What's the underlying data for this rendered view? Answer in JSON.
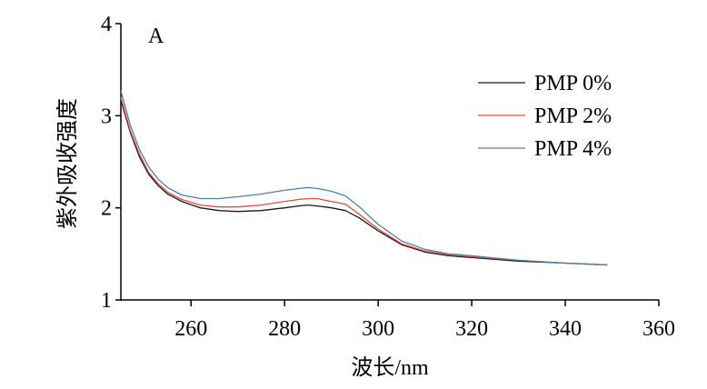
{
  "panel_label": "A",
  "chart_data": {
    "type": "line",
    "xlabel": "波长/nm",
    "ylabel": "紫外吸收强度",
    "xlim": [
      245,
      360
    ],
    "ylim": [
      1,
      4
    ],
    "xticks": [
      260,
      280,
      300,
      320,
      340,
      360
    ],
    "yticks": [
      1,
      2,
      3,
      4
    ],
    "grid": false,
    "legend_position": "top-right",
    "x": [
      245,
      247,
      249,
      251,
      253,
      255,
      258,
      262,
      266,
      270,
      275,
      280,
      283,
      285,
      287,
      290,
      293,
      296,
      300,
      305,
      310,
      315,
      320,
      330,
      340,
      349
    ],
    "series": [
      {
        "name": "PMP 0%",
        "color": "#1a1a1a",
        "values": [
          3.17,
          2.82,
          2.55,
          2.36,
          2.24,
          2.15,
          2.07,
          2.0,
          1.97,
          1.96,
          1.97,
          2.0,
          2.02,
          2.03,
          2.02,
          2.0,
          1.97,
          1.89,
          1.75,
          1.6,
          1.52,
          1.48,
          1.46,
          1.42,
          1.4,
          1.38
        ]
      },
      {
        "name": "PMP 2%",
        "color": "#e04e3a",
        "values": [
          3.2,
          2.84,
          2.58,
          2.38,
          2.26,
          2.17,
          2.09,
          2.03,
          2.01,
          2.01,
          2.03,
          2.07,
          2.09,
          2.1,
          2.1,
          2.07,
          2.04,
          1.93,
          1.77,
          1.61,
          1.53,
          1.49,
          1.47,
          1.43,
          1.4,
          1.38
        ]
      },
      {
        "name": "PMP 4%",
        "color": "#4f81a8",
        "values": [
          3.27,
          2.9,
          2.63,
          2.44,
          2.31,
          2.22,
          2.14,
          2.1,
          2.1,
          2.12,
          2.15,
          2.19,
          2.21,
          2.22,
          2.21,
          2.18,
          2.13,
          2.01,
          1.82,
          1.64,
          1.55,
          1.5,
          1.48,
          1.43,
          1.4,
          1.38
        ]
      }
    ]
  }
}
